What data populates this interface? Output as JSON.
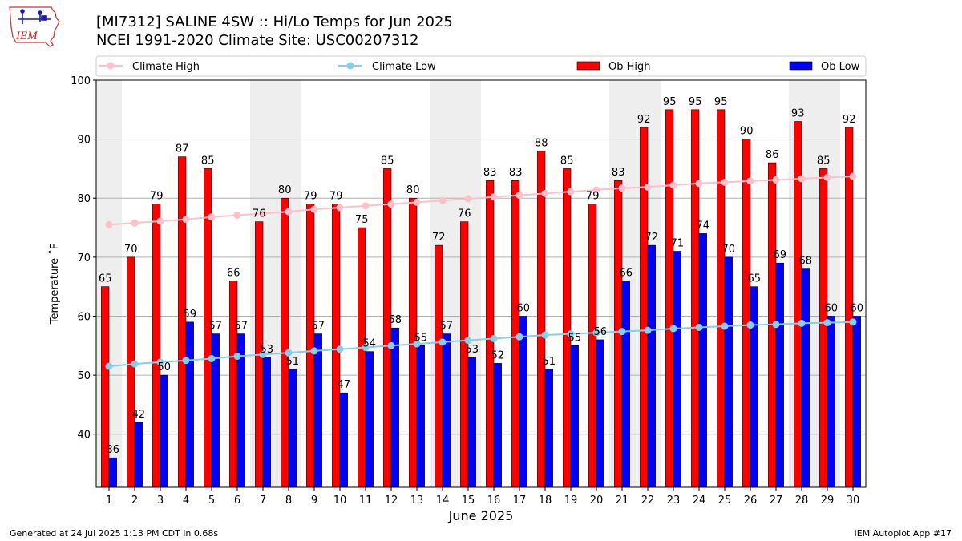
{
  "header": {
    "title_line1": "[MI7312] SALINE 4SW :: Hi/Lo Temps for Jun 2025",
    "title_line2": "NCEI 1991-2020 Climate Site: USC00207312"
  },
  "logo": {
    "text": "IEM"
  },
  "footer": {
    "generated": "Generated at 24 Jul 2025 1:13 PM CDT in 0.68s",
    "app": "IEM Autoplot App #17"
  },
  "colors": {
    "ob_high": "#ff0000",
    "ob_low": "#0000ff",
    "climate_high": "#ffc0cb",
    "climate_low": "#87ceeb",
    "weekend_band": "#eeeeee",
    "grid": "#b0b0b0"
  },
  "chart_data": {
    "type": "bar",
    "xlabel": "June 2025",
    "ylabel": "Temperature ˚F",
    "ylim": [
      31,
      100
    ],
    "yticks": [
      40,
      50,
      60,
      70,
      80,
      90,
      100
    ],
    "grid": "horizontal",
    "legend_position": "top",
    "categories": [
      "1",
      "2",
      "3",
      "4",
      "5",
      "6",
      "7",
      "8",
      "9",
      "10",
      "11",
      "12",
      "13",
      "14",
      "15",
      "16",
      "17",
      "18",
      "19",
      "20",
      "21",
      "22",
      "23",
      "24",
      "25",
      "26",
      "27",
      "28",
      "29",
      "30"
    ],
    "weekend_bands": [
      [
        1,
        1
      ],
      [
        7,
        8
      ],
      [
        14,
        15
      ],
      [
        21,
        22
      ],
      [
        28,
        29
      ]
    ],
    "series": [
      {
        "name": "Ob High",
        "kind": "bar",
        "color": "#ff0000",
        "values": [
          65,
          70,
          79,
          87,
          85,
          66,
          76,
          80,
          79,
          79,
          75,
          85,
          80,
          72,
          76,
          83,
          83,
          88,
          85,
          79,
          83,
          92,
          95,
          95,
          95,
          90,
          86,
          93,
          85,
          92
        ]
      },
      {
        "name": "Ob Low",
        "kind": "bar",
        "color": "#0000ff",
        "values": [
          36,
          42,
          50,
          59,
          57,
          57,
          53,
          51,
          57,
          47,
          54,
          58,
          55,
          57,
          53,
          52,
          60,
          51,
          55,
          56,
          66,
          72,
          71,
          74,
          70,
          65,
          69,
          68,
          60,
          60
        ]
      },
      {
        "name": "Climate High",
        "kind": "line",
        "color": "#ffc0cb",
        "values": [
          75.5,
          75.8,
          76.1,
          76.4,
          76.8,
          77.1,
          77.4,
          77.7,
          78.1,
          78.4,
          78.7,
          79.0,
          79.3,
          79.6,
          79.9,
          80.2,
          80.5,
          80.8,
          81.1,
          81.4,
          81.7,
          81.9,
          82.2,
          82.5,
          82.7,
          82.9,
          83.1,
          83.3,
          83.5,
          83.7
        ]
      },
      {
        "name": "Climate Low",
        "kind": "line",
        "color": "#87ceeb",
        "values": [
          51.5,
          51.9,
          52.2,
          52.5,
          52.8,
          53.2,
          53.5,
          53.8,
          54.1,
          54.4,
          54.7,
          55.0,
          55.3,
          55.6,
          55.9,
          56.2,
          56.5,
          56.8,
          57.0,
          57.2,
          57.4,
          57.6,
          57.9,
          58.1,
          58.3,
          58.5,
          58.6,
          58.8,
          58.9,
          59.0
        ]
      }
    ]
  }
}
